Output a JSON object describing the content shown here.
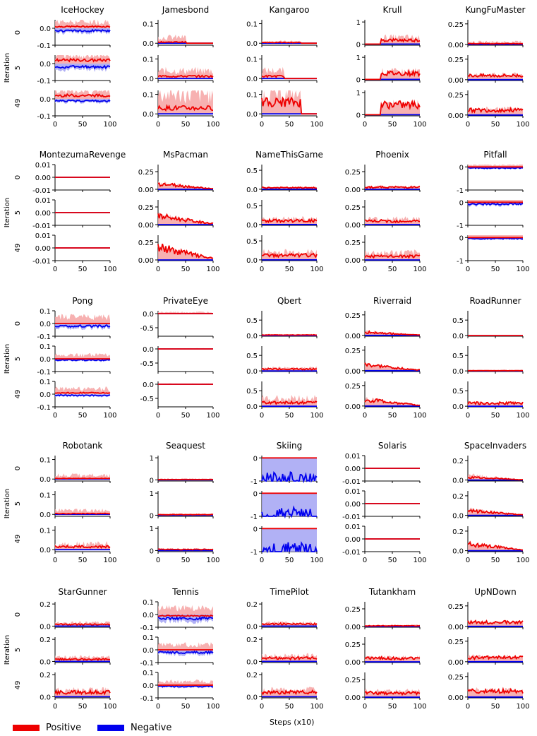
{
  "figure": {
    "iteration_label": "Iteration",
    "x_axis_label": "Steps (x10)",
    "row_labels": [
      "0",
      "5",
      "49"
    ],
    "x_ticks": [
      0,
      50,
      100
    ],
    "legend": [
      {
        "label": "Positive",
        "color": "#ee0000"
      },
      {
        "label": "Negative",
        "color": "#0000ee"
      }
    ],
    "colors": {
      "positive": "#ee0000",
      "positive_band": "#f6a3a3",
      "negative": "#0000ee",
      "negative_band": "#a3a3f3"
    }
  },
  "chart_data": [
    {
      "type": "line",
      "title": "IceHockey",
      "yticks": [
        "0.0",
        "-0.1"
      ],
      "yrange": [
        -0.1,
        0.05
      ],
      "yticks_full": [
        "0.0",
        "-0.1"
      ],
      "pos": [
        0.01,
        0.02,
        0.02
      ],
      "neg": [
        -0.015,
        -0.02,
        -0.012
      ],
      "band": [
        0.04,
        0.05,
        0.05
      ],
      "start": 0
    },
    {
      "type": "line",
      "title": "Jamesbond",
      "yticks": [
        "0.1",
        "0.0"
      ],
      "yrange": [
        -0.01,
        0.12
      ],
      "pos": [
        0.006,
        0.012,
        0.03
      ],
      "neg": [
        0,
        0,
        0
      ],
      "band": [
        0.03,
        0.04,
        0.1
      ],
      "start": 0,
      "end_pos": [
        50,
        100,
        100
      ]
    },
    {
      "type": "line",
      "title": "Kangaroo",
      "yticks": [
        "0.1",
        "0.0"
      ],
      "yrange": [
        -0.01,
        0.12
      ],
      "pos": [
        0.004,
        0.012,
        0.06
      ],
      "neg": [
        0,
        0,
        0
      ],
      "band": [
        0.01,
        0.04,
        0.1
      ],
      "start": 0,
      "end_pos": [
        70,
        40,
        70
      ]
    },
    {
      "type": "line",
      "title": "Krull",
      "yticks": [
        "1",
        "0"
      ],
      "yrange": [
        -0.05,
        1.1
      ],
      "pos": [
        0.18,
        0.28,
        0.45
      ],
      "neg": [
        0,
        0,
        0
      ],
      "band": [
        0.3,
        0.35,
        0.45
      ],
      "start": 30
    },
    {
      "type": "line",
      "title": "KungFuMaster",
      "yticks": [
        "0.25",
        "0.00"
      ],
      "yrange": [
        -0.01,
        0.3
      ],
      "pos": [
        0.01,
        0.05,
        0.06
      ],
      "neg": [
        0,
        0,
        0
      ],
      "band": [
        0.03,
        0.06,
        0.07
      ],
      "start": 0
    },
    {
      "type": "line",
      "title": "MontezumaRevenge",
      "yticks": [
        "0.01",
        "0.00",
        "-0.01"
      ],
      "yrange": [
        -0.01,
        0.01
      ],
      "pos": [
        0,
        0,
        0
      ],
      "neg": [
        0,
        0,
        0
      ],
      "band": [
        0,
        0,
        0
      ],
      "start": 0
    },
    {
      "type": "line",
      "title": "MsPacman",
      "yticks": [
        "0.25",
        "0.00"
      ],
      "yrange": [
        -0.01,
        0.35
      ],
      "pos": [
        0.08,
        0.12,
        0.18
      ],
      "neg": [
        0,
        0,
        0
      ],
      "band": [
        0.08,
        0.12,
        0.1
      ],
      "start": 0
    },
    {
      "type": "line",
      "title": "NameThisGame",
      "yticks": [
        "0.5",
        "0.0"
      ],
      "yrange": [
        -0.02,
        0.65
      ],
      "pos": [
        0.04,
        0.1,
        0.12
      ],
      "neg": [
        0,
        0,
        0
      ],
      "band": [
        0.05,
        0.15,
        0.2
      ],
      "start": 0
    },
    {
      "type": "line",
      "title": "Phoenix",
      "yticks": [
        "0.25",
        "0.00"
      ],
      "yrange": [
        -0.01,
        0.35
      ],
      "pos": [
        0.03,
        0.05,
        0.05
      ],
      "neg": [
        0,
        0,
        0
      ],
      "band": [
        0.04,
        0.08,
        0.1
      ],
      "start": 0
    },
    {
      "type": "line",
      "title": "Pitfall",
      "yticks": [
        "0",
        "-1"
      ],
      "yrange": [
        -1,
        0.1
      ],
      "pos": [
        0,
        0,
        0
      ],
      "neg": [
        -0.05,
        -0.08,
        -0.05
      ],
      "band": [
        0.1,
        0.2,
        0.2
      ],
      "start": 0
    },
    {
      "type": "line",
      "title": "Pong",
      "yticks": [
        "0.1",
        "0.0",
        "-0.1"
      ],
      "yrange": [
        -0.1,
        0.1
      ],
      "pos": [
        0.0,
        0.0,
        0.01
      ],
      "neg": [
        -0.02,
        -0.01,
        -0.01
      ],
      "band": [
        0.05,
        0.03,
        0.04
      ],
      "start": 0
    },
    {
      "type": "line",
      "title": "PrivateEye",
      "yticks": [
        "0.0",
        "-0.5"
      ],
      "yrange": [
        -0.8,
        0.1
      ],
      "pos": [
        0,
        0,
        0
      ],
      "neg": [
        0,
        0,
        0
      ],
      "band": [
        0.05,
        0.02,
        0.02
      ],
      "start": 0
    },
    {
      "type": "line",
      "title": "Qbert",
      "yticks": [
        "0.5",
        "0.0"
      ],
      "yrange": [
        -0.02,
        0.8
      ],
      "pos": [
        0.02,
        0.06,
        0.12
      ],
      "neg": [
        0,
        0,
        0
      ],
      "band": [
        0.04,
        0.1,
        0.25
      ],
      "start": 0
    },
    {
      "type": "line",
      "title": "Riverraid",
      "yticks": [
        "0.25",
        "0.00"
      ],
      "yrange": [
        -0.01,
        0.3
      ],
      "pos": [
        0.04,
        0.07,
        0.08
      ],
      "neg": [
        0,
        0,
        0
      ],
      "band": [
        0.05,
        0.07,
        0.08
      ],
      "start": 0
    },
    {
      "type": "line",
      "title": "RoadRunner",
      "yticks": [
        "0.5",
        "0.0"
      ],
      "yrange": [
        -0.02,
        0.8
      ],
      "pos": [
        0.0,
        0.01,
        0.1
      ],
      "neg": [
        0,
        0,
        0
      ],
      "band": [
        0.01,
        0.02,
        0.1
      ],
      "start": 0
    },
    {
      "type": "line",
      "title": "Robotank",
      "yticks": [
        "0.1",
        "0.0"
      ],
      "yrange": [
        -0.01,
        0.12
      ],
      "pos": [
        0.003,
        0.004,
        0.015
      ],
      "neg": [
        0,
        0,
        0
      ],
      "band": [
        0.02,
        0.02,
        0.03
      ],
      "start": 0
    },
    {
      "type": "line",
      "title": "Seaquest",
      "yticks": [
        "1",
        "0"
      ],
      "yrange": [
        -0.05,
        1.1
      ],
      "pos": [
        0.02,
        0.03,
        0.05
      ],
      "neg": [
        0,
        0,
        0
      ],
      "band": [
        0.03,
        0.05,
        0.06
      ],
      "start": 0
    },
    {
      "type": "line",
      "title": "Skiing",
      "yticks": [
        "0",
        "-1"
      ],
      "yrange": [
        -1,
        0.1
      ],
      "pos": [
        0,
        0,
        0
      ],
      "neg": [
        -1,
        -1,
        -1
      ],
      "band": [
        0,
        0,
        0
      ],
      "start": 0
    },
    {
      "type": "line",
      "title": "Solaris",
      "yticks": [
        "0.01",
        "0.00",
        "-0.01"
      ],
      "yrange": [
        -0.01,
        0.01
      ],
      "pos": [
        0,
        0,
        0
      ],
      "neg": [
        0,
        0,
        0
      ],
      "band": [
        0,
        0,
        0
      ],
      "start": 0
    },
    {
      "type": "line",
      "title": "SpaceInvaders",
      "yticks": [
        "0.2",
        "0.0"
      ],
      "yrange": [
        -0.01,
        0.25
      ],
      "pos": [
        0.03,
        0.05,
        0.07
      ],
      "neg": [
        0,
        0,
        0
      ],
      "band": [
        0.05,
        0.06,
        0.06
      ],
      "start": 0
    },
    {
      "type": "line",
      "title": "StarGunner",
      "yticks": [
        "0.2",
        "0.0"
      ],
      "yrange": [
        -0.01,
        0.22
      ],
      "pos": [
        0.015,
        0.02,
        0.04
      ],
      "neg": [
        0,
        0,
        0
      ],
      "band": [
        0.03,
        0.04,
        0.06
      ],
      "start": 0
    },
    {
      "type": "line",
      "title": "Tennis",
      "yticks": [
        "0.1",
        "0.0",
        "-0.1"
      ],
      "yrange": [
        -0.1,
        0.1
      ],
      "pos": [
        -0.01,
        0.0,
        0.0
      ],
      "neg": [
        -0.03,
        -0.02,
        -0.01
      ],
      "band": [
        0.05,
        0.04,
        0.03
      ],
      "start": 0
    },
    {
      "type": "line",
      "title": "TimePilot",
      "yticks": [
        "0.2",
        "0.0"
      ],
      "yrange": [
        -0.01,
        0.22
      ],
      "pos": [
        0.02,
        0.03,
        0.04
      ],
      "neg": [
        0,
        0,
        0
      ],
      "band": [
        0.03,
        0.05,
        0.06
      ],
      "start": 0
    },
    {
      "type": "line",
      "title": "Tutankham",
      "yticks": [
        "0.25",
        "0.00"
      ],
      "yrange": [
        -0.01,
        0.35
      ],
      "pos": [
        0.01,
        0.05,
        0.06
      ],
      "neg": [
        0,
        0,
        0
      ],
      "band": [
        0.02,
        0.06,
        0.08
      ],
      "start": 0
    },
    {
      "type": "line",
      "title": "UpNDown",
      "yticks": [
        "0.25",
        "0.00"
      ],
      "yrange": [
        -0.01,
        0.3
      ],
      "pos": [
        0.05,
        0.05,
        0.07
      ],
      "neg": [
        0,
        0,
        0
      ],
      "band": [
        0.05,
        0.06,
        0.08
      ],
      "start": 0
    }
  ]
}
